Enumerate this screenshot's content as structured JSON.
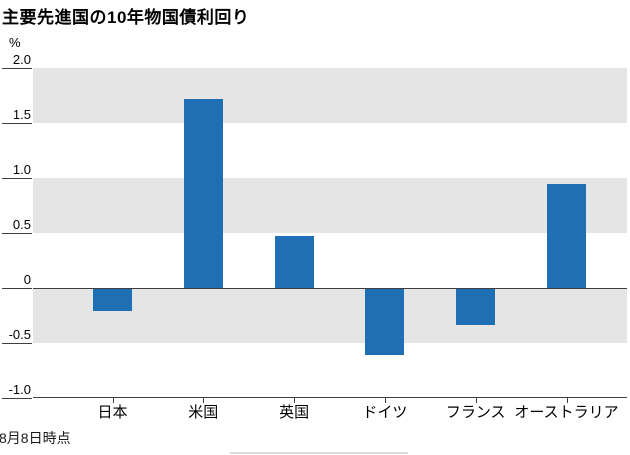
{
  "chart_data": {
    "type": "bar",
    "title": "主要先進国の10年物国債利回り",
    "unit_label": "%",
    "categories": [
      "日本",
      "米国",
      "英国",
      "ドイツ",
      "フランス",
      "オーストラリア"
    ],
    "values": [
      -0.2,
      1.72,
      0.47,
      -0.6,
      -0.33,
      0.95
    ],
    "ylabel": "",
    "xlabel": "",
    "ylim": [
      -1.0,
      2.0
    ],
    "yticks": [
      2.0,
      1.5,
      1.0,
      0.5,
      0,
      -0.5,
      -1.0
    ],
    "ytick_labels": [
      "2.0",
      "1.5",
      "1.0",
      "0.5",
      "0",
      "-0.5",
      "-1.0"
    ],
    "grid": "alternating-horizontal-bands",
    "legend": "none",
    "note": "8月8日時点",
    "bar_color": "#1e6fb4",
    "band_color": "#e5e5e5",
    "axis_color": "#3f3f3f"
  }
}
